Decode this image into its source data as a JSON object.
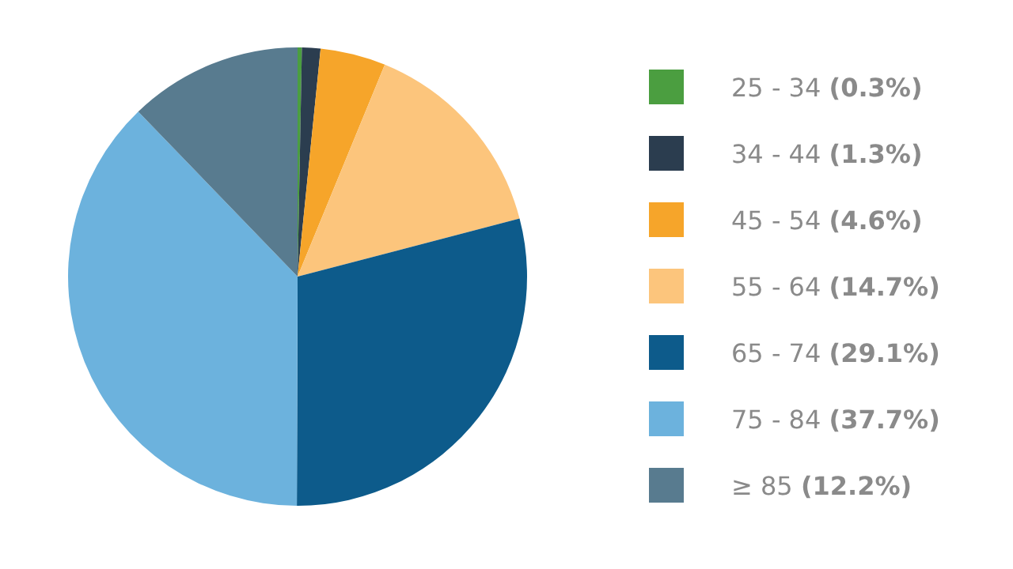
{
  "chart_data": {
    "type": "pie",
    "categories": [
      "25 - 34",
      "34 - 44",
      "45 - 54",
      "55 - 64",
      "65 - 74",
      "75 - 84",
      "≥ 85"
    ],
    "values": [
      0.3,
      1.3,
      4.6,
      14.7,
      29.1,
      37.7,
      12.2
    ],
    "value_labels": [
      "(0.3%)",
      "(1.3%)",
      "(4.6%)",
      "(14.7%)",
      "(29.1%)",
      "(37.7%)",
      "(12.2%)"
    ],
    "colors": [
      "#4b9e40",
      "#2b3d4f",
      "#f6a52a",
      "#fcc57c",
      "#0d5b8b",
      "#6cb2dd",
      "#587b8f"
    ],
    "legend": "right"
  }
}
